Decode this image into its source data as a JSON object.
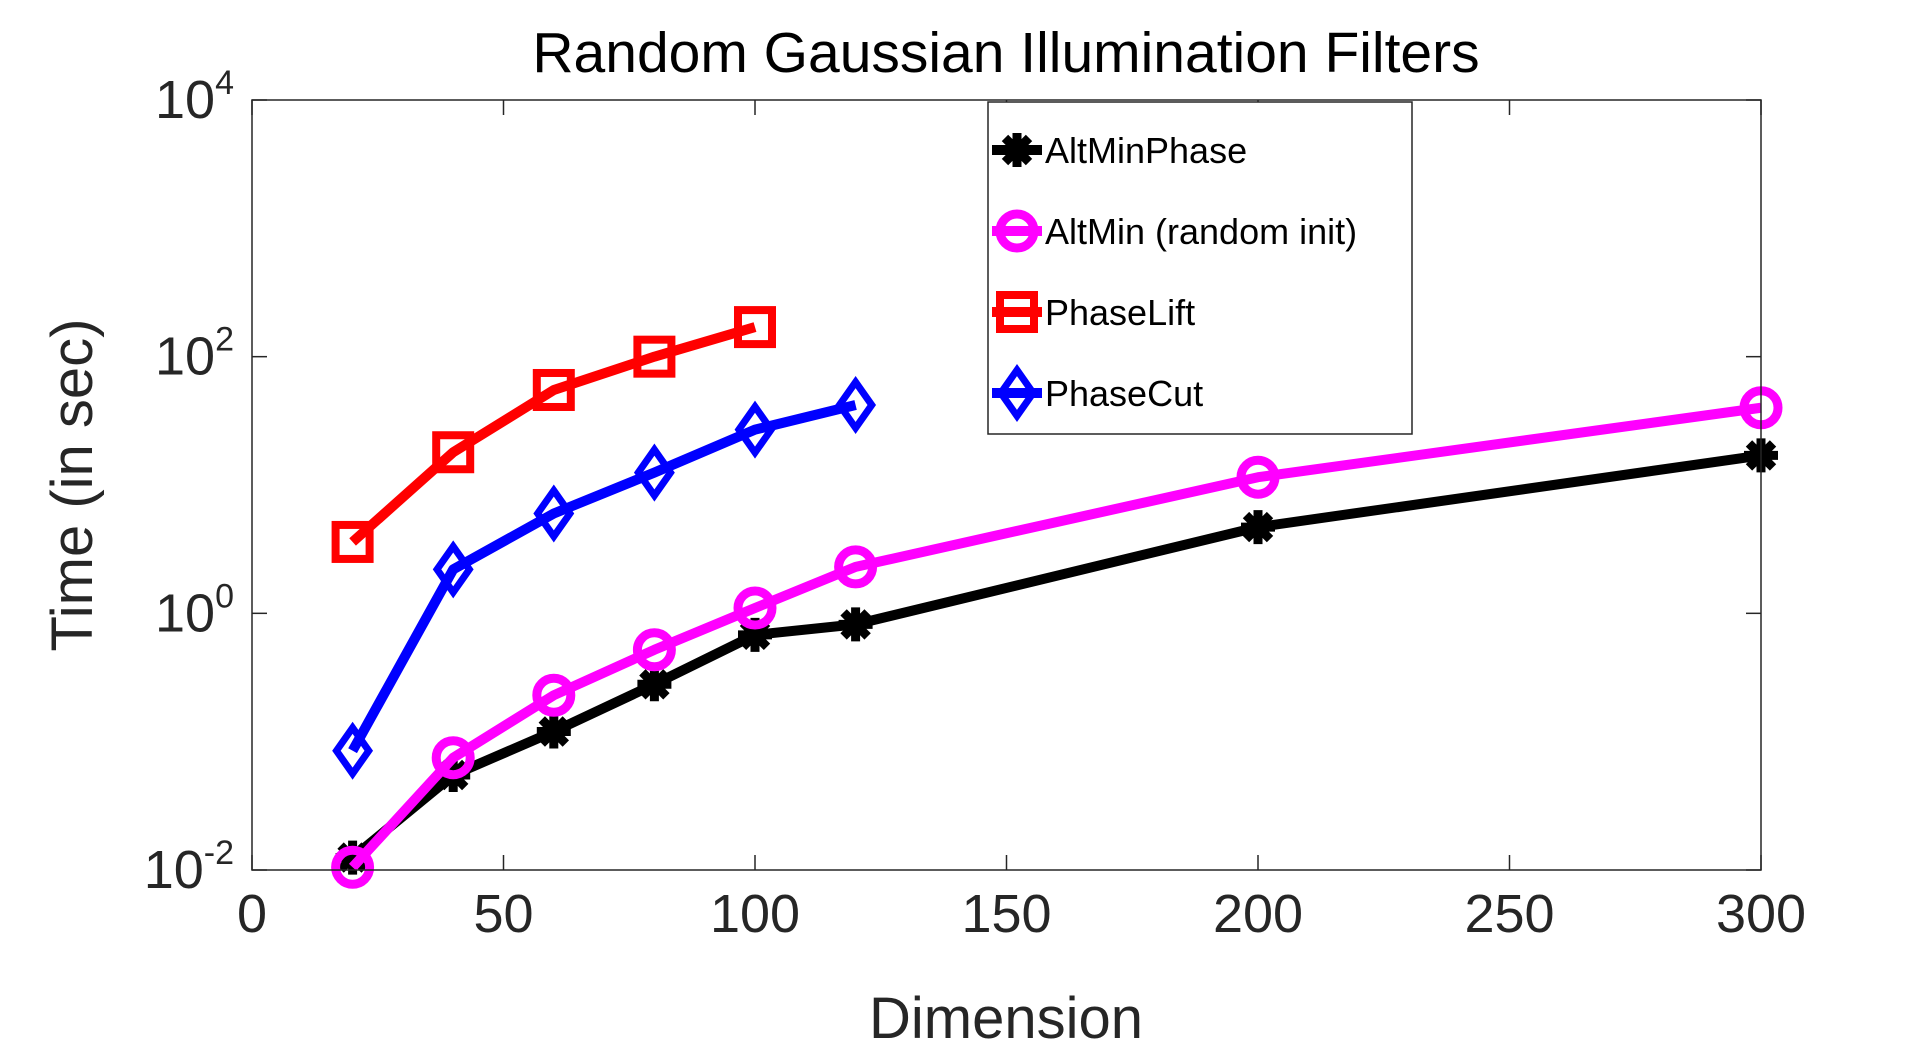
{
  "chart_data": {
    "type": "line",
    "title": "Random Gaussian Illumination Filters",
    "xlabel": "Dimension",
    "ylabel": "Time (in sec)",
    "xlim": [
      0,
      300
    ],
    "ylim": [
      0.01,
      10000
    ],
    "yscale": "log",
    "grid": false,
    "legend_position": "top-center",
    "x_ticks": [
      {
        "value": 0,
        "label": "0"
      },
      {
        "value": 50,
        "label": "50"
      },
      {
        "value": 100,
        "label": "100"
      },
      {
        "value": 150,
        "label": "150"
      },
      {
        "value": 200,
        "label": "200"
      },
      {
        "value": 250,
        "label": "250"
      },
      {
        "value": 300,
        "label": "300"
      }
    ],
    "y_ticks": [
      {
        "value": 0.01,
        "base": "10",
        "exp": "-2"
      },
      {
        "value": 1,
        "base": "10",
        "exp": "0"
      },
      {
        "value": 100,
        "base": "10",
        "exp": "2"
      },
      {
        "value": 10000,
        "base": "10",
        "exp": "4"
      }
    ],
    "series": [
      {
        "name": "AltMinPhase",
        "color": "#000000",
        "marker": "asterisk",
        "x": [
          20,
          40,
          60,
          80,
          100,
          120,
          200,
          300
        ],
        "y": [
          0.0125,
          0.055,
          0.12,
          0.28,
          0.68,
          0.82,
          4.7,
          17
        ]
      },
      {
        "name": "AltMin (random init)",
        "color": "#ff00ff",
        "marker": "circle",
        "x": [
          20,
          40,
          60,
          80,
          100,
          120,
          200,
          300
        ],
        "y": [
          0.0105,
          0.075,
          0.23,
          0.52,
          1.1,
          2.3,
          11.5,
          40
        ]
      },
      {
        "name": "PhaseLift",
        "color": "#ff0000",
        "marker": "square",
        "x": [
          20,
          40,
          60,
          80,
          100
        ],
        "y": [
          3.6,
          18,
          55,
          100,
          170
        ]
      },
      {
        "name": "PhaseCut",
        "color": "#0000ff",
        "marker": "diamond",
        "x": [
          20,
          40,
          60,
          80,
          100,
          120
        ],
        "y": [
          0.085,
          2.2,
          6,
          12.5,
          27,
          42
        ]
      }
    ]
  }
}
